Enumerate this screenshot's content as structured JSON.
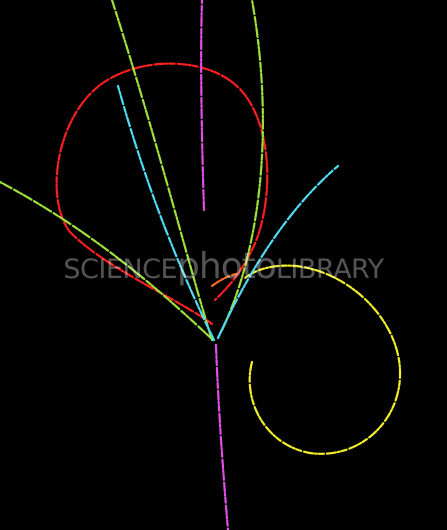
{
  "image": {
    "subject": "bubble-chamber-particle-tracks",
    "background_color": "#000000",
    "track_colors": {
      "red": "#ff1f1f",
      "yellow": "#f2ee2a",
      "green": "#9fe03a",
      "cyan": "#4fdcf2",
      "magenta": "#e24fe6",
      "orange": "#ff6a1f"
    }
  },
  "watermark": {
    "prefix": "SCIENCE",
    "middle": "photo",
    "suffix": "LIBRARY"
  }
}
